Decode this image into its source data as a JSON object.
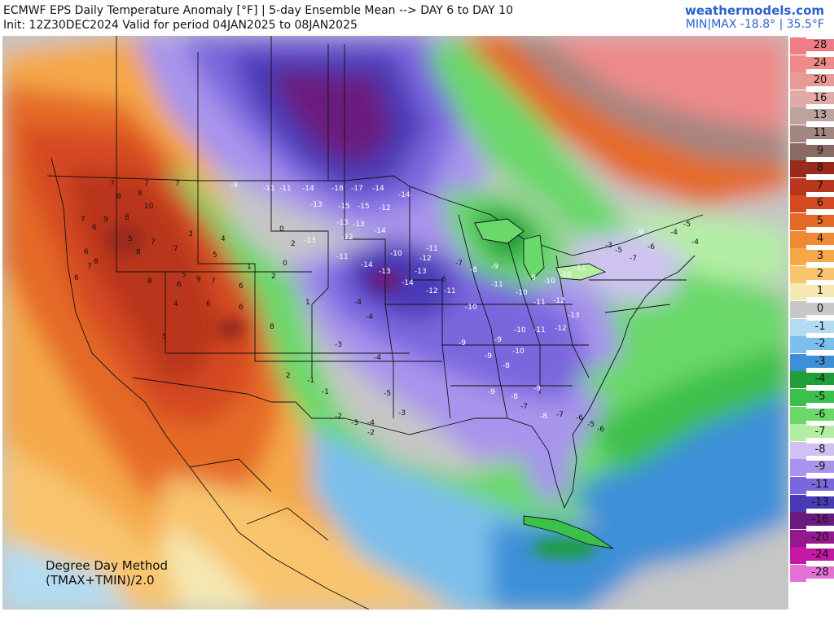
{
  "header": {
    "title": "ECMWF EPS Daily Temperature Anomaly [°F] | 5-day Ensemble Mean --> DAY 6 to DAY 10",
    "init": "Init: 12Z30DEC2024 Valid for period 04JAN2025 to 08JAN2025",
    "site": "weathermodels.com",
    "minmax": "MIN|MAX -18.8° | 35.5°F"
  },
  "method": {
    "line1": "Degree Day Method",
    "line2": "(TMAX+TMIN)/2.0"
  },
  "legend": [
    {
      "label": "28",
      "color": "#f07c86"
    },
    {
      "label": "24",
      "color": "#ee8a8a"
    },
    {
      "label": "20",
      "color": "#e89a98"
    },
    {
      "label": "16",
      "color": "#e0aaa6"
    },
    {
      "label": "13",
      "color": "#bca39e"
    },
    {
      "label": "11",
      "color": "#a48680"
    },
    {
      "label": "9",
      "color": "#8a6a64"
    },
    {
      "label": "8",
      "color": "#9a2a1c"
    },
    {
      "label": "7",
      "color": "#b9361e"
    },
    {
      "label": "6",
      "color": "#d54a20"
    },
    {
      "label": "5",
      "color": "#e56a28"
    },
    {
      "label": "4",
      "color": "#ef8a32"
    },
    {
      "label": "3",
      "color": "#f5a848"
    },
    {
      "label": "2",
      "color": "#f8c46e"
    },
    {
      "label": "1",
      "color": "#f5e8b0"
    },
    {
      "label": "0",
      "color": "#c8c8c8"
    },
    {
      "label": "-1",
      "color": "#b2dcf2"
    },
    {
      "label": "-2",
      "color": "#7cbfea"
    },
    {
      "label": "-3",
      "color": "#3e8fd8"
    },
    {
      "label": "-4",
      "color": "#1f9e3a"
    },
    {
      "label": "-5",
      "color": "#3cc04c"
    },
    {
      "label": "-6",
      "color": "#6ad86a"
    },
    {
      "label": "-7",
      "color": "#b4eea4"
    },
    {
      "label": "-8",
      "color": "#cfc2f2"
    },
    {
      "label": "-9",
      "color": "#a894ec"
    },
    {
      "label": "-11",
      "color": "#7c66de"
    },
    {
      "label": "-13",
      "color": "#4a3ab6"
    },
    {
      "label": "-16",
      "color": "#6a1a7e"
    },
    {
      "label": "-20",
      "color": "#96188e"
    },
    {
      "label": "-24",
      "color": "#c418a6"
    },
    {
      "label": "-28",
      "color": "#e472d4"
    }
  ],
  "anomaly_labels": [
    {
      "v": "7"
    },
    {
      "v": "7"
    },
    {
      "v": "7"
    },
    {
      "v": "8"
    },
    {
      "v": "8"
    },
    {
      "v": "10"
    },
    {
      "v": "9"
    },
    {
      "v": "8"
    },
    {
      "v": "6"
    },
    {
      "v": "7"
    },
    {
      "v": "5"
    },
    {
      "v": "8"
    },
    {
      "v": "7"
    },
    {
      "v": "7"
    },
    {
      "v": "6"
    },
    {
      "v": "8"
    },
    {
      "v": "5"
    },
    {
      "v": "9"
    },
    {
      "v": "6"
    },
    {
      "v": "7"
    },
    {
      "v": "8"
    },
    {
      "v": "6"
    },
    {
      "v": "7"
    },
    {
      "v": "6"
    },
    {
      "v": "5"
    },
    {
      "v": "4"
    },
    {
      "v": "3"
    },
    {
      "v": "5"
    },
    {
      "v": "8"
    },
    {
      "v": "6"
    },
    {
      "v": "4"
    },
    {
      "v": "1"
    },
    {
      "v": "2"
    },
    {
      "v": "0"
    },
    {
      "v": "6"
    },
    {
      "v": "2"
    },
    {
      "v": "0"
    },
    {
      "v": "1"
    },
    {
      "v": "2"
    },
    {
      "v": "-9"
    },
    {
      "v": "-11"
    },
    {
      "v": "-11"
    },
    {
      "v": "-14"
    },
    {
      "v": "-18"
    },
    {
      "v": "-17"
    },
    {
      "v": "-14"
    },
    {
      "v": "-14"
    },
    {
      "v": "-13"
    },
    {
      "v": "-15"
    },
    {
      "v": "-15"
    },
    {
      "v": "-12"
    },
    {
      "v": "-13"
    },
    {
      "v": "-13"
    },
    {
      "v": "-14"
    },
    {
      "v": "-12"
    },
    {
      "v": "-11"
    },
    {
      "v": "-13"
    },
    {
      "v": "-10"
    },
    {
      "v": "-11"
    },
    {
      "v": "-12"
    },
    {
      "v": "-14"
    },
    {
      "v": "-13"
    },
    {
      "v": "-14"
    },
    {
      "v": "-13"
    },
    {
      "v": "-12"
    },
    {
      "v": "-11"
    },
    {
      "v": "-10"
    },
    {
      "v": "-11"
    },
    {
      "v": "-10"
    },
    {
      "v": "-11"
    },
    {
      "v": "-12"
    },
    {
      "v": "-13"
    },
    {
      "v": "-12"
    },
    {
      "v": "-11"
    },
    {
      "v": "-10"
    },
    {
      "v": "-9"
    },
    {
      "v": "-9"
    },
    {
      "v": "-10"
    },
    {
      "v": "-9"
    },
    {
      "v": "-8"
    },
    {
      "v": "-9"
    },
    {
      "v": "-8"
    },
    {
      "v": "-7"
    },
    {
      "v": "-9"
    },
    {
      "v": "-8"
    },
    {
      "v": "-7"
    },
    {
      "v": "-6"
    },
    {
      "v": "-5"
    },
    {
      "v": "-6"
    },
    {
      "v": "-4"
    },
    {
      "v": "-4"
    },
    {
      "v": "-3"
    },
    {
      "v": "-4"
    },
    {
      "v": "-5"
    },
    {
      "v": "-4"
    },
    {
      "v": "-3"
    },
    {
      "v": "-2"
    },
    {
      "v": "-1"
    },
    {
      "v": "-1"
    },
    {
      "v": "-2"
    },
    {
      "v": "-3"
    },
    {
      "v": "-6"
    },
    {
      "v": "-7"
    },
    {
      "v": "-8"
    },
    {
      "v": "-9"
    },
    {
      "v": "-9"
    },
    {
      "v": "-10"
    },
    {
      "v": "-10"
    },
    {
      "v": "-11"
    },
    {
      "v": "-3"
    },
    {
      "v": "-5"
    },
    {
      "v": "-7"
    },
    {
      "v": "-6"
    },
    {
      "v": "-4"
    },
    {
      "v": "-5"
    },
    {
      "v": "-4"
    },
    {
      "v": "-9"
    }
  ]
}
